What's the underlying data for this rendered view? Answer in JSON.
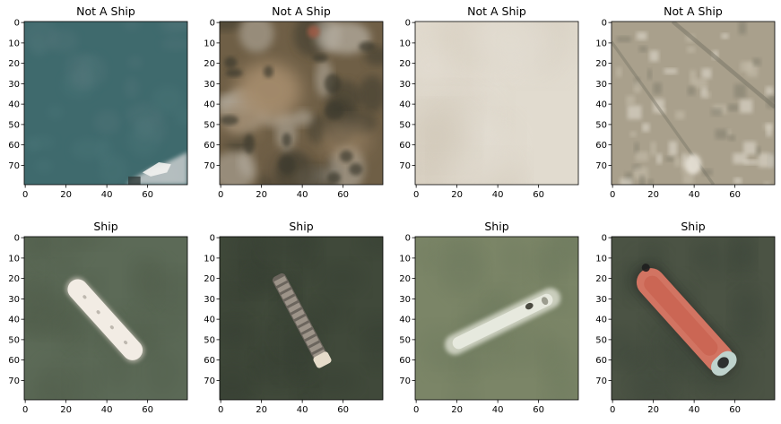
{
  "figure": {
    "background": "#ffffff",
    "panels": [
      {
        "title": "Not A Ship",
        "class": "not_ship",
        "scene": "water-corner",
        "colors": [
          "#3f6a6d",
          "#4b7678",
          "#55767a",
          "#c8cccd"
        ]
      },
      {
        "title": "Not A Ship",
        "class": "not_ship",
        "scene": "dark-land",
        "colors": [
          "#6f5f46",
          "#3d3a2e",
          "#a48b6c",
          "#b9b2a6"
        ]
      },
      {
        "title": "Not A Ship",
        "class": "not_ship",
        "scene": "cloud",
        "colors": [
          "#e1dbcf",
          "#d4cbbb",
          "#eae6de",
          "#c9bfad"
        ]
      },
      {
        "title": "Not A Ship",
        "class": "not_ship",
        "scene": "urban",
        "colors": [
          "#a9a08c",
          "#7f7b6c",
          "#c8c0ad",
          "#e6e1d6"
        ]
      },
      {
        "title": "Ship",
        "class": "ship",
        "scene": "white-tanker",
        "colors": [
          "#5c6a57",
          "#4f5c4a",
          "#f2ece4",
          "#c9c2b8"
        ]
      },
      {
        "title": "Ship",
        "class": "ship",
        "scene": "cargo-ship",
        "colors": [
          "#40493a",
          "#343c30",
          "#9d9489",
          "#e6dcca"
        ]
      },
      {
        "title": "Ship",
        "class": "ship",
        "scene": "pale-ship",
        "colors": [
          "#7b8567",
          "#6e7a5e",
          "#d9dccd",
          "#3a3a30"
        ]
      },
      {
        "title": "Ship",
        "class": "ship",
        "scene": "red-tanker",
        "colors": [
          "#4b5344",
          "#3e463a",
          "#d27462",
          "#1e1e1e"
        ]
      }
    ],
    "axis": {
      "x_ticks": [
        0,
        20,
        40,
        60
      ],
      "y_ticks": [
        0,
        10,
        20,
        30,
        40,
        50,
        60,
        70
      ],
      "range": [
        0,
        80
      ]
    }
  }
}
